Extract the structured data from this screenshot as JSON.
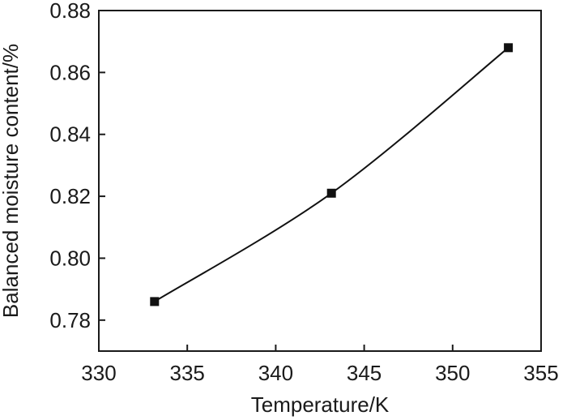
{
  "chart_data": {
    "type": "line",
    "title": "",
    "xlabel": "Temperature/K",
    "ylabel": "Balanced moisture content/%",
    "xlim": [
      330,
      355
    ],
    "ylim": [
      0.77,
      0.88
    ],
    "x_ticks": [
      330,
      335,
      340,
      345,
      350,
      355
    ],
    "x_tick_labels": [
      "330",
      "335",
      "340",
      "345",
      "350",
      "355"
    ],
    "y_ticks": [
      0.78,
      0.8,
      0.82,
      0.84,
      0.86,
      0.88
    ],
    "y_tick_labels": [
      "0.78",
      "0.80",
      "0.82",
      "0.84",
      "0.86",
      "0.88"
    ],
    "grid": false,
    "legend": "none",
    "series": [
      {
        "marker": "square",
        "color": "#111111",
        "x": [
          333.15,
          343.15,
          353.15
        ],
        "y": [
          0.786,
          0.821,
          0.868
        ]
      }
    ]
  }
}
